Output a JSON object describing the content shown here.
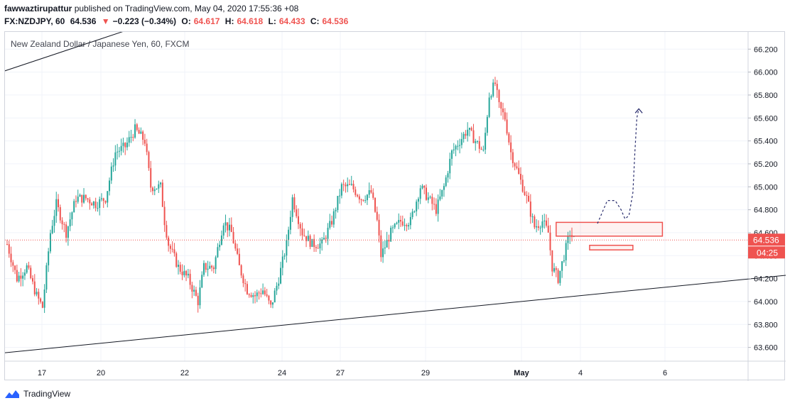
{
  "header": {
    "username": "fawwaztirupattur",
    "published": "published on TradingView.com, May 04, 2020 17:55:36 +08",
    "symbol": "FX:NZDJPY, 60",
    "last": "64.536",
    "change_arrow": "▼",
    "change": "−0.223 (−0.34%)",
    "o_label": "O:",
    "o": "64.617",
    "h_label": "H:",
    "h": "64.618",
    "l_label": "L:",
    "l": "64.433",
    "c_label": "C:",
    "c": "64.536"
  },
  "footer": {
    "brand": "TradingView"
  },
  "colors": {
    "up": "#26a69a",
    "down": "#ef5350",
    "price_line": "#ef5350",
    "trendline": "#131722",
    "projection": "#2a2e6e",
    "grid": "#f0f3fa"
  },
  "chart_data": {
    "type": "candlestick",
    "title": "New Zealand Dollar / Japanese Yen, 60, FXCM",
    "ylim": [
      63.48,
      66.35
    ],
    "y_ticks": [
      "66.200",
      "66.000",
      "65.800",
      "65.600",
      "65.400",
      "65.200",
      "65.000",
      "64.800",
      "64.600",
      "64.400",
      "64.200",
      "64.000",
      "63.800",
      "63.600"
    ],
    "x_ticks": [
      "17",
      "20",
      "22",
      "24",
      "27",
      "29",
      "May",
      "4",
      "6"
    ],
    "current_price_label": "64.536",
    "countdown_label": "04:25",
    "last_price": 64.536,
    "key_points": [
      [
        0,
        64.5
      ],
      [
        5,
        64.2
      ],
      [
        10,
        64.3
      ],
      [
        15,
        64.05
      ],
      [
        18,
        63.95
      ],
      [
        22,
        64.6
      ],
      [
        25,
        64.85
      ],
      [
        30,
        64.6
      ],
      [
        35,
        64.9
      ],
      [
        40,
        64.9
      ],
      [
        45,
        64.85
      ],
      [
        50,
        64.9
      ],
      [
        55,
        65.3
      ],
      [
        60,
        65.35
      ],
      [
        65,
        65.5
      ],
      [
        70,
        65.4
      ],
      [
        73,
        65.0
      ],
      [
        78,
        65.0
      ],
      [
        80,
        64.7
      ],
      [
        82,
        64.5
      ],
      [
        87,
        64.3
      ],
      [
        92,
        64.2
      ],
      [
        97,
        64.0
      ],
      [
        100,
        64.3
      ],
      [
        105,
        64.3
      ],
      [
        110,
        64.7
      ],
      [
        114,
        64.6
      ],
      [
        118,
        64.3
      ],
      [
        122,
        64.1
      ],
      [
        126,
        64.05
      ],
      [
        130,
        64.1
      ],
      [
        134,
        63.95
      ],
      [
        138,
        64.2
      ],
      [
        142,
        64.5
      ],
      [
        145,
        64.9
      ],
      [
        150,
        64.6
      ],
      [
        155,
        64.5
      ],
      [
        160,
        64.5
      ],
      [
        165,
        64.7
      ],
      [
        170,
        65.0
      ],
      [
        175,
        65.0
      ],
      [
        180,
        64.9
      ],
      [
        185,
        64.95
      ],
      [
        188,
        64.7
      ],
      [
        190,
        64.4
      ],
      [
        195,
        64.6
      ],
      [
        200,
        64.7
      ],
      [
        205,
        64.7
      ],
      [
        210,
        65.0
      ],
      [
        214,
        64.9
      ],
      [
        218,
        64.8
      ],
      [
        222,
        65.0
      ],
      [
        226,
        65.3
      ],
      [
        230,
        65.4
      ],
      [
        234,
        65.5
      ],
      [
        238,
        65.4
      ],
      [
        242,
        65.3
      ],
      [
        245,
        65.8
      ],
      [
        248,
        65.9
      ],
      [
        250,
        65.7
      ],
      [
        253,
        65.6
      ],
      [
        256,
        65.3
      ],
      [
        260,
        65.1
      ],
      [
        264,
        64.9
      ],
      [
        268,
        64.65
      ],
      [
        272,
        64.7
      ],
      [
        275,
        64.6
      ],
      [
        277,
        64.3
      ],
      [
        280,
        64.2
      ],
      [
        283,
        64.4
      ],
      [
        286,
        64.6
      ],
      [
        288,
        64.54
      ]
    ],
    "trendlines": [
      {
        "from": [
          -3,
          63.55
        ],
        "to": [
          420,
          64.27
        ]
      },
      {
        "from": [
          -3,
          66.0
        ],
        "to": [
          60,
          66.36
        ]
      }
    ],
    "zones": [
      {
        "x1": 279,
        "x2": 333,
        "y1": 64.57,
        "y2": 64.69
      },
      {
        "x1": 296,
        "x2": 318,
        "y1": 64.45,
        "y2": 64.49
      }
    ],
    "projection": [
      [
        300,
        64.68
      ],
      [
        305,
        64.88
      ],
      [
        309,
        64.88
      ],
      [
        312,
        64.8
      ],
      [
        314,
        64.72
      ],
      [
        316,
        64.75
      ],
      [
        318,
        64.95
      ],
      [
        319,
        65.3
      ],
      [
        320,
        65.6
      ],
      [
        321,
        65.68
      ]
    ]
  }
}
